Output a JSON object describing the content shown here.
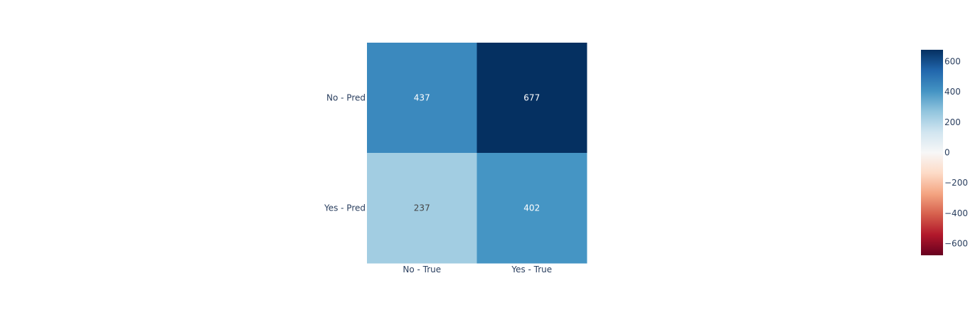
{
  "chart_data": {
    "type": "heatmap",
    "x_categories": [
      "No - True",
      "Yes - True"
    ],
    "y_categories": [
      "No - Pred",
      "Yes - Pred"
    ],
    "z": [
      [
        437,
        677
      ],
      [
        237,
        402
      ]
    ],
    "title": "",
    "xlabel": "",
    "ylabel": "",
    "colorscale": "RdBu",
    "zrange": [
      -677,
      677
    ],
    "colorbar": {
      "ticks": [
        600,
        400,
        200,
        0,
        -200,
        -400,
        -600
      ],
      "tick_labels": [
        "600",
        "400",
        "200",
        "0",
        "−200",
        "−400",
        "−600"
      ]
    }
  }
}
